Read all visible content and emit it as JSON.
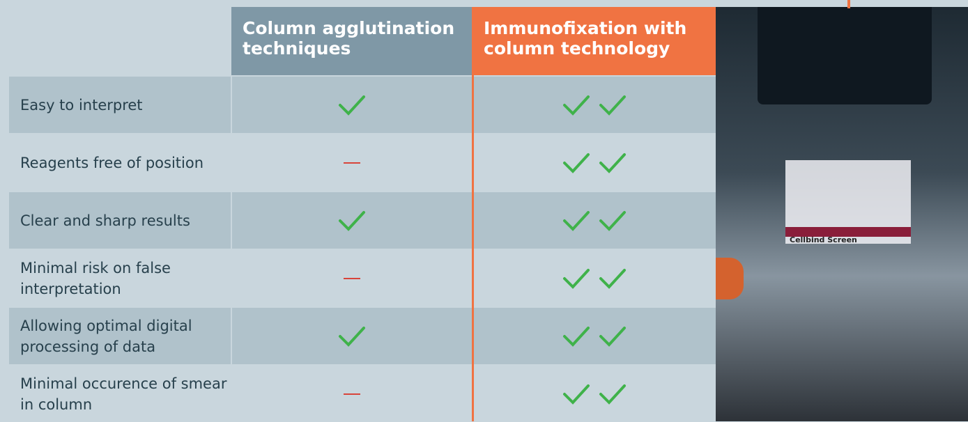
{
  "table": {
    "headers": [
      "Column agglutination techniques",
      "Immunofixation with column technology"
    ],
    "rows": [
      "Easy to interpret",
      "Reagents free of position",
      "Clear and sharp results",
      "Minimal risk on false interpretation",
      "Allowing optimal digital processing of data",
      "Minimal occurence of smear in column"
    ]
  },
  "photo": {
    "label": "Cellbind Screen"
  }
}
